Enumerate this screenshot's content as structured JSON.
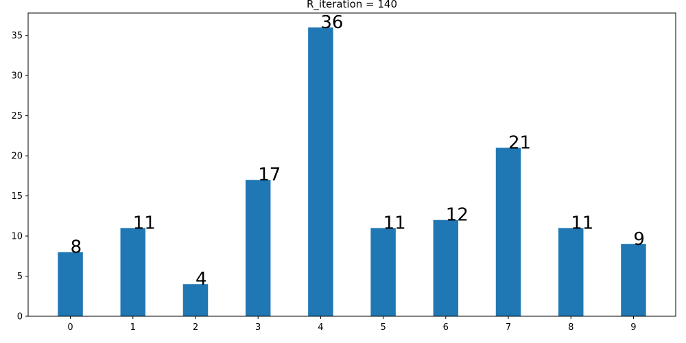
{
  "chart_data": {
    "type": "bar",
    "title": "R_iteration = 140",
    "xlabel": "",
    "ylabel": "",
    "categories": [
      "0",
      "1",
      "2",
      "3",
      "4",
      "5",
      "6",
      "7",
      "8",
      "9"
    ],
    "values": [
      8,
      11,
      4,
      17,
      36,
      11,
      12,
      21,
      11,
      9
    ],
    "data_labels": [
      "8",
      "11",
      "4",
      "17",
      "36",
      "11",
      "12",
      "21",
      "11",
      "9"
    ],
    "ylim": [
      0,
      37.8
    ],
    "yticks": [
      0,
      5,
      10,
      15,
      20,
      25,
      30,
      35
    ],
    "bar_color": "#1f77b4",
    "grid": false
  }
}
